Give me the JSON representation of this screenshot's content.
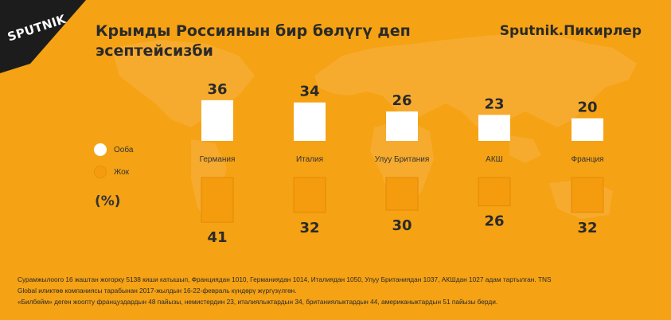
{
  "header": {
    "logo_text": "SPUTNIK",
    "title_line1": "Крымды Россиянын бир бөлүгү деп",
    "title_line2": "эсептейсизби",
    "brand": "Sputnik.Пикирлер"
  },
  "legend": {
    "yes_label": "Ооба",
    "no_label": "Жок",
    "unit": "(%)"
  },
  "colors": {
    "background": "#f5a214",
    "yes": "#ffffff",
    "no": "#f59b0e",
    "text": "#2a2a2a"
  },
  "chart_data": {
    "type": "bar",
    "title": "Крымды Россиянын бир бөлүгү деп эсептейсизби",
    "categories": [
      "Германия",
      "Италия",
      "Улуу Британия",
      "АКШ",
      "Франция"
    ],
    "series": [
      {
        "name": "Ооба",
        "values": [
          36,
          34,
          26,
          23,
          20
        ]
      },
      {
        "name": "Жок",
        "values": [
          41,
          32,
          30,
          26,
          32
        ]
      }
    ],
    "unit": "(%)",
    "grid": false,
    "legend_position": "left"
  },
  "footnote": {
    "line1": "Сурамжылоого 16 жаштан жогорку 5138 киши катышып, Франциядан 1010, Германиядан 1014, Италиядан 1050, Улуу Британиядан 1037, АКШдан 1027 адам тартылган. TNS",
    "line2": "Global иликтөө компаниясы тарабынан 2017-жылдын 16-22-февраль күндөрү жүргүзүлгөн.",
    "line3": "«Билбейм» деген жоопту француздардын 48 пайызы, немистердин 23, италиялыктардын 34, британиялыктардын 44, американыктардын 51 пайызы берди."
  }
}
